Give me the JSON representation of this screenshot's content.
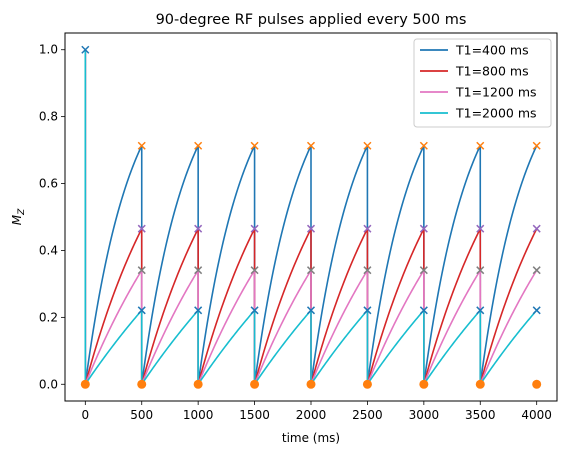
{
  "chart_data": {
    "type": "line",
    "title": "90-degree RF pulses applied every 500 ms",
    "xlabel": "time (ms)",
    "ylabel_main": "M",
    "ylabel_sub": "Z",
    "xlim": [
      -180,
      4180
    ],
    "ylim": [
      -0.05,
      1.05
    ],
    "xticks": [
      0,
      500,
      1000,
      1500,
      2000,
      2500,
      3000,
      3500,
      4000
    ],
    "yticks": [
      0.0,
      0.2,
      0.4,
      0.6,
      0.8,
      1.0
    ],
    "ytick_labels": [
      "0.0",
      "0.2",
      "0.4",
      "0.6",
      "0.8",
      "1.0"
    ],
    "pulse_interval_ms": 500,
    "pulse_times_ms": [
      0,
      500,
      1000,
      1500,
      2000,
      2500,
      3000,
      3500,
      4000
    ],
    "initial_mz": 1.0,
    "post_pulse_mz": 0.0,
    "legend_position": "upper right",
    "series": [
      {
        "name": "T1=400 ms",
        "t1_ms": 400,
        "color": "#1f77b4",
        "peak_marker_color": "#ff7f0e",
        "mz_before_pulse": 0.713
      },
      {
        "name": "T1=800 ms",
        "t1_ms": 800,
        "color": "#d62728",
        "peak_marker_color": "#9467bd",
        "mz_before_pulse": 0.465
      },
      {
        "name": "T1=1200 ms",
        "t1_ms": 1200,
        "color": "#e377c2",
        "peak_marker_color": "#7f7f7f",
        "mz_before_pulse": 0.341
      },
      {
        "name": "T1=2000 ms",
        "t1_ms": 2000,
        "color": "#17becf",
        "peak_marker_color": "#1f77b4",
        "mz_before_pulse": 0.221
      }
    ],
    "zero_marker_color": "#ff7f0e",
    "initial_marker_color": "#1f77b4"
  }
}
